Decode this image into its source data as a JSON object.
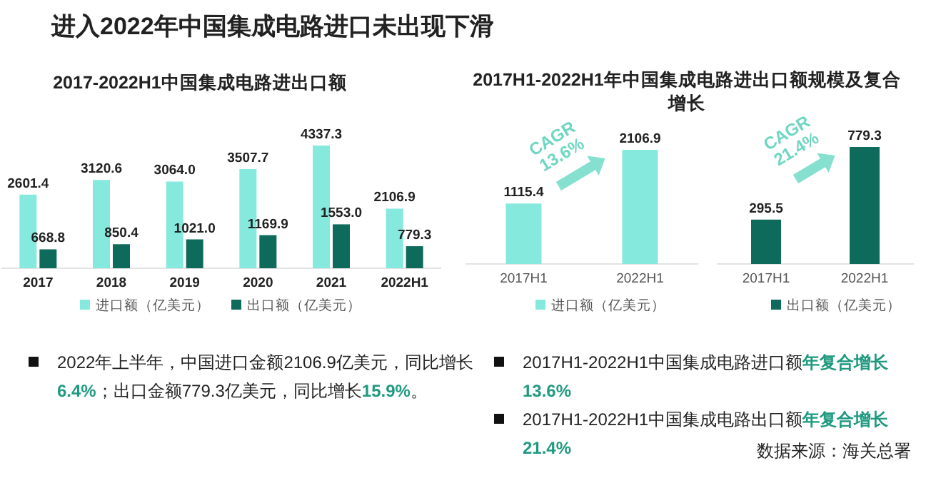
{
  "chart_data": [
    {
      "type": "other",
      "title": "进入2022年中国集成电路进口未出现下滑"
    },
    {
      "type": "bar",
      "title": "2017-2022H1中国集成电路进出口额",
      "categories": [
        "2017",
        "2018",
        "2019",
        "2020",
        "2021",
        "2022H1"
      ],
      "legend": "bottom",
      "series": [
        {
          "name": "进口额（亿美元）",
          "color": "#86e9de",
          "values": [
            2601.4,
            3120.6,
            3064.0,
            3507.7,
            4337.3,
            2106.9
          ],
          "value_labels": [
            "2601.4",
            "3120.6",
            "3064.0",
            "3507.7",
            "4337.3",
            "2106.9"
          ]
        },
        {
          "name": "出口额（亿美元）",
          "color": "#0e6b5b",
          "values": [
            668.8,
            850.4,
            1021.0,
            1169.9,
            1553.0,
            779.3
          ],
          "value_labels": [
            "668.8",
            "850.4",
            "1021.0",
            "1169.9",
            "1553.0",
            "779.3"
          ]
        }
      ]
    },
    {
      "type": "bar",
      "title": "2017H1-2022H1年中国集成电路进出口额规模及复合增长",
      "categories": [
        "2017H1",
        "2022H1"
      ],
      "legend": "bottom",
      "annotations": [
        "CAGR 13.6%"
      ],
      "series": [
        {
          "name": "进口额（亿美元）",
          "color": "#86e9de",
          "values": [
            1115.4,
            2106.9
          ],
          "value_labels": [
            "1115.4",
            "2106.9"
          ]
        }
      ]
    },
    {
      "type": "bar",
      "categories": [
        "2017H1",
        "2022H1"
      ],
      "legend": "bottom",
      "annotations": [
        "CAGR 21.4%"
      ],
      "series": [
        {
          "name": "出口额（亿美元）",
          "color": "#0e6b5b",
          "values": [
            295.5,
            779.3
          ],
          "value_labels": [
            "295.5",
            "779.3"
          ]
        }
      ]
    },
    {
      "type": "other",
      "annotations": [
        "2022年上半年，中国进口金额2106.9亿美元，同比增长**6.4%**；出口金额779.3亿美元，同比增长**15.9%**。",
        "2017H1-2022H1中国集成电路进口额**年复合增长13.6%**",
        "2017H1-2022H1中国集成电路出口额**年复合增长21.4%**",
        "数据来源：海关总署"
      ]
    }
  ]
}
